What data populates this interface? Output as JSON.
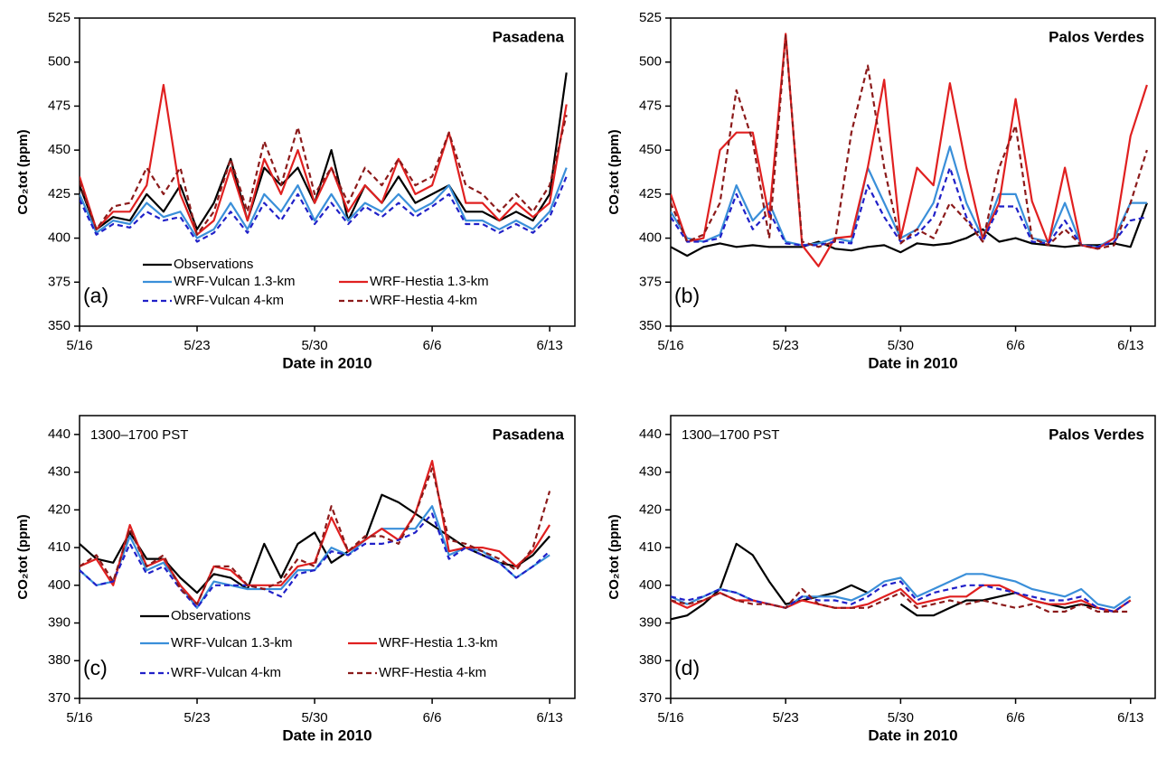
{
  "chart_data": [
    {
      "type": "line",
      "title": "Pasadena",
      "panel_label": "(a)",
      "xlabel": "Date in 2010",
      "ylabel": "CO₂tot (ppm)",
      "xlim": [
        0,
        29.5
      ],
      "xticks": [
        {
          "value": 0,
          "label": "5/16"
        },
        {
          "value": 7,
          "label": "5/23"
        },
        {
          "value": 14,
          "label": "5/30"
        },
        {
          "value": 21,
          "label": "6/6"
        },
        {
          "value": 28,
          "label": "6/13"
        }
      ],
      "ylim": [
        350,
        525
      ],
      "yticks": [
        350,
        375,
        400,
        425,
        450,
        475,
        500,
        525
      ],
      "legend": "lower left",
      "x": [
        0,
        1,
        2,
        3,
        4,
        5,
        6,
        7,
        8,
        9,
        10,
        11,
        12,
        13,
        14,
        15,
        16,
        17,
        18,
        19,
        20,
        21,
        22,
        23,
        24,
        25,
        26,
        27,
        28,
        29
      ],
      "series": [
        {
          "name": "Observations",
          "color": "#000000",
          "dashed": false,
          "values": [
            430,
            405,
            412,
            410,
            425,
            415,
            430,
            405,
            420,
            445,
            410,
            440,
            430,
            440,
            420,
            450,
            410,
            430,
            420,
            435,
            420,
            425,
            430,
            415,
            415,
            410,
            415,
            410,
            425,
            494
          ]
        },
        {
          "name": "WRF-Vulcan 1.3-km",
          "color": "#3a8fd9",
          "dashed": false,
          "values": [
            425,
            403,
            410,
            408,
            420,
            412,
            415,
            400,
            405,
            420,
            405,
            425,
            415,
            430,
            410,
            425,
            410,
            420,
            415,
            425,
            415,
            420,
            430,
            410,
            410,
            405,
            410,
            405,
            415,
            440
          ]
        },
        {
          "name": "WRF-Hestia 1.3-km",
          "color": "#e02020",
          "dashed": false,
          "values": [
            435,
            405,
            415,
            415,
            430,
            487,
            425,
            402,
            410,
            440,
            410,
            445,
            425,
            450,
            420,
            440,
            415,
            430,
            420,
            445,
            425,
            430,
            460,
            420,
            420,
            410,
            420,
            412,
            420,
            476
          ]
        },
        {
          "name": "WRF-Vulcan 4-km",
          "color": "#2020c8",
          "dashed": true,
          "values": [
            422,
            402,
            408,
            406,
            415,
            410,
            412,
            398,
            403,
            415,
            403,
            420,
            410,
            425,
            408,
            420,
            408,
            418,
            412,
            420,
            412,
            418,
            425,
            408,
            408,
            403,
            408,
            403,
            412,
            435
          ]
        },
        {
          "name": "WRF-Hestia 4-km",
          "color": "#8b1a1a",
          "dashed": true,
          "values": [
            432,
            405,
            418,
            420,
            440,
            425,
            440,
            402,
            415,
            445,
            415,
            455,
            430,
            463,
            425,
            440,
            420,
            440,
            430,
            445,
            430,
            435,
            460,
            430,
            425,
            415,
            425,
            415,
            430,
            470
          ]
        }
      ]
    },
    {
      "type": "line",
      "title": "Palos Verdes",
      "panel_label": "(b)",
      "xlabel": "Date in 2010",
      "ylabel": "CO₂tot (ppm)",
      "xlim": [
        0,
        29.5
      ],
      "xticks": [
        {
          "value": 0,
          "label": "5/16"
        },
        {
          "value": 7,
          "label": "5/23"
        },
        {
          "value": 14,
          "label": "5/30"
        },
        {
          "value": 21,
          "label": "6/6"
        },
        {
          "value": 28,
          "label": "6/13"
        }
      ],
      "ylim": [
        350,
        525
      ],
      "yticks": [
        350,
        375,
        400,
        425,
        450,
        475,
        500,
        525
      ],
      "legend": false,
      "x": [
        0,
        1,
        2,
        3,
        4,
        5,
        6,
        7,
        8,
        9,
        10,
        11,
        12,
        13,
        14,
        15,
        16,
        17,
        18,
        19,
        20,
        21,
        22,
        23,
        24,
        25,
        26,
        27,
        28,
        29
      ],
      "series": [
        {
          "color": "#000000",
          "dashed": false,
          "values": [
            395,
            390,
            395,
            397,
            395,
            396,
            395,
            395,
            395,
            398,
            394,
            393,
            395,
            396,
            392,
            397,
            396,
            397,
            400,
            405,
            398,
            400,
            397,
            396,
            395,
            396,
            396,
            397,
            395,
            420
          ]
        },
        {
          "color": "#3a8fd9",
          "dashed": false,
          "values": [
            415,
            400,
            398,
            402,
            430,
            410,
            420,
            398,
            396,
            397,
            400,
            398,
            440,
            420,
            400,
            405,
            420,
            452,
            420,
            400,
            425,
            425,
            400,
            398,
            420,
            396,
            395,
            400,
            420,
            420
          ]
        },
        {
          "color": "#e02020",
          "dashed": false,
          "values": [
            425,
            398,
            400,
            450,
            460,
            460,
            412,
            516,
            396,
            384,
            400,
            401,
            440,
            490,
            400,
            440,
            430,
            488,
            440,
            400,
            420,
            479,
            421,
            397,
            440,
            396,
            394,
            400,
            458,
            487
          ]
        },
        {
          "color": "#2020c8",
          "dashed": true,
          "values": [
            412,
            398,
            398,
            400,
            425,
            405,
            415,
            397,
            396,
            396,
            398,
            397,
            430,
            412,
            398,
            402,
            412,
            440,
            412,
            398,
            418,
            418,
            398,
            397,
            410,
            396,
            395,
            398,
            410,
            412
          ]
        },
        {
          "color": "#8b1a1a",
          "dashed": true,
          "values": [
            420,
            398,
            402,
            420,
            484,
            455,
            400,
            515,
            398,
            395,
            398,
            460,
            498,
            440,
            397,
            405,
            400,
            420,
            410,
            398,
            440,
            464,
            400,
            396,
            405,
            396,
            394,
            396,
            420,
            450
          ]
        }
      ]
    },
    {
      "type": "line",
      "title": "Pasadena",
      "subtitle": "1300–1700 PST",
      "panel_label": "(c)",
      "xlabel": "Date in 2010",
      "ylabel": "CO₂tot (ppm)",
      "xlim": [
        0,
        29.5
      ],
      "xticks": [
        {
          "value": 0,
          "label": "5/16"
        },
        {
          "value": 7,
          "label": "5/23"
        },
        {
          "value": 14,
          "label": "5/30"
        },
        {
          "value": 21,
          "label": "6/6"
        },
        {
          "value": 28,
          "label": "6/13"
        }
      ],
      "ylim": [
        370,
        445
      ],
      "yticks": [
        370,
        380,
        390,
        400,
        410,
        420,
        430,
        440
      ],
      "legend": "lower left",
      "x": [
        0,
        1,
        2,
        3,
        4,
        5,
        6,
        7,
        8,
        9,
        10,
        11,
        12,
        13,
        14,
        15,
        16,
        17,
        18,
        19,
        20,
        21,
        22,
        23,
        24,
        25,
        26,
        27,
        28
      ],
      "series": [
        {
          "name": "Observations",
          "color": "#000000",
          "dashed": false,
          "values": [
            411,
            407,
            406,
            414,
            407,
            407,
            402,
            398,
            403,
            402,
            399,
            411,
            402,
            411,
            414,
            406,
            409,
            412,
            424,
            422,
            419,
            416,
            413,
            410,
            408,
            406,
            405,
            408,
            413
          ]
        },
        {
          "name": "WRF-Vulcan 1.3-km",
          "color": "#3a8fd9",
          "dashed": false,
          "values": [
            404,
            400,
            401,
            413,
            404,
            406,
            400,
            394,
            401,
            400,
            399,
            399,
            399,
            404,
            404,
            410,
            408,
            412,
            415,
            415,
            415,
            421,
            408,
            410,
            409,
            406,
            402,
            405,
            408
          ]
        },
        {
          "name": "WRF-Hestia 1.3-km",
          "color": "#e02020",
          "dashed": false,
          "values": [
            405,
            407,
            400,
            416,
            405,
            407,
            400,
            395,
            405,
            404,
            400,
            400,
            400,
            405,
            406,
            418,
            409,
            412,
            415,
            412,
            419,
            433,
            409,
            410,
            410,
            409,
            405,
            409,
            416
          ]
        },
        {
          "name": "WRF-Vulcan 4-km",
          "color": "#2020c8",
          "dashed": true,
          "values": [
            404,
            400,
            401,
            411,
            403,
            405,
            399,
            394,
            400,
            400,
            400,
            399,
            397,
            403,
            404,
            409,
            408,
            411,
            411,
            412,
            414,
            419,
            407,
            410,
            408,
            406,
            402,
            405,
            409
          ]
        },
        {
          "name": "WRF-Hestia 4-km",
          "color": "#8b1a1a",
          "dashed": true,
          "values": [
            405,
            408,
            401,
            415,
            405,
            408,
            399,
            395,
            405,
            405,
            400,
            399,
            401,
            407,
            405,
            421,
            409,
            413,
            413,
            411,
            419,
            431,
            412,
            411,
            409,
            407,
            404,
            410,
            425
          ]
        }
      ]
    },
    {
      "type": "line",
      "title": "Palos Verdes",
      "subtitle": "1300–1700 PST",
      "panel_label": "(d)",
      "xlabel": "Date in 2010",
      "ylabel": "CO₂tot (ppm)",
      "xlim": [
        0,
        29.5
      ],
      "xticks": [
        {
          "value": 0,
          "label": "5/16"
        },
        {
          "value": 7,
          "label": "5/23"
        },
        {
          "value": 14,
          "label": "5/30"
        },
        {
          "value": 21,
          "label": "6/6"
        },
        {
          "value": 28,
          "label": "6/13"
        }
      ],
      "ylim": [
        370,
        445
      ],
      "yticks": [
        370,
        380,
        390,
        400,
        410,
        420,
        430,
        440
      ],
      "legend": false,
      "x": [
        0,
        1,
        2,
        3,
        4,
        5,
        6,
        7,
        8,
        9,
        10,
        11,
        12,
        13,
        14,
        15,
        16,
        17,
        18,
        19,
        20,
        21,
        22,
        23,
        24,
        25,
        26,
        27,
        28
      ],
      "series": [
        {
          "color": "#000000",
          "dashed": false,
          "values": [
            391,
            392,
            395,
            399,
            411,
            408,
            401,
            395,
            396,
            397,
            398,
            400,
            398,
            null,
            395,
            392,
            392,
            394,
            396,
            396,
            397,
            398,
            396,
            395,
            394,
            395,
            394,
            393,
            396
          ]
        },
        {
          "color": "#3a8fd9",
          "dashed": false,
          "values": [
            397,
            395,
            397,
            399,
            398,
            396,
            395,
            394,
            397,
            397,
            397,
            396,
            398,
            401,
            402,
            397,
            399,
            401,
            403,
            403,
            402,
            401,
            399,
            398,
            397,
            399,
            395,
            394,
            397
          ]
        },
        {
          "color": "#e02020",
          "dashed": false,
          "values": [
            396,
            394,
            396,
            398,
            396,
            396,
            395,
            394,
            396,
            395,
            394,
            394,
            395,
            397,
            399,
            395,
            396,
            397,
            397,
            400,
            400,
            398,
            396,
            395,
            395,
            396,
            394,
            393,
            396
          ]
        },
        {
          "color": "#2020c8",
          "dashed": true,
          "values": [
            397,
            396,
            397,
            399,
            398,
            396,
            395,
            394,
            397,
            396,
            396,
            395,
            397,
            400,
            401,
            396,
            398,
            399,
            400,
            400,
            399,
            398,
            397,
            396,
            396,
            397,
            394,
            393,
            396
          ]
        },
        {
          "color": "#8b1a1a",
          "dashed": true,
          "values": [
            396,
            395,
            396,
            398,
            396,
            395,
            395,
            394,
            399,
            395,
            394,
            394,
            394,
            396,
            398,
            394,
            395,
            396,
            395,
            396,
            395,
            394,
            395,
            393,
            393,
            395,
            393,
            393,
            393
          ]
        }
      ]
    }
  ]
}
